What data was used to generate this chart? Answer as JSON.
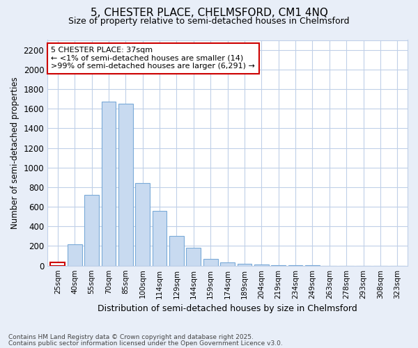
{
  "title1": "5, CHESTER PLACE, CHELMSFORD, CM1 4NQ",
  "title2": "Size of property relative to semi-detached houses in Chelmsford",
  "xlabel": "Distribution of semi-detached houses by size in Chelmsford",
  "ylabel": "Number of semi-detached properties",
  "bar_color": "#c8daf0",
  "bar_edge_color": "#7aaad8",
  "highlight_fill": "#ffffff",
  "highlight_edge": "#cc0000",
  "annotation_title": "5 CHESTER PLACE: 37sqm",
  "annotation_line1": "← <1% of semi-detached houses are smaller (14)",
  "annotation_line2": ">99% of semi-detached houses are larger (6,291) →",
  "categories": [
    "25sqm",
    "40sqm",
    "55sqm",
    "70sqm",
    "85sqm",
    "100sqm",
    "114sqm",
    "129sqm",
    "144sqm",
    "159sqm",
    "174sqm",
    "189sqm",
    "204sqm",
    "219sqm",
    "234sqm",
    "249sqm",
    "263sqm",
    "278sqm",
    "293sqm",
    "308sqm",
    "323sqm"
  ],
  "values": [
    30,
    220,
    720,
    1670,
    1650,
    840,
    560,
    300,
    185,
    70,
    30,
    20,
    10,
    5,
    3,
    2,
    0,
    0,
    0,
    0,
    0
  ],
  "ylim": [
    0,
    2300
  ],
  "yticks": [
    0,
    200,
    400,
    600,
    800,
    1000,
    1200,
    1400,
    1600,
    1800,
    2000,
    2200
  ],
  "footer1": "Contains HM Land Registry data © Crown copyright and database right 2025.",
  "footer2": "Contains public sector information licensed under the Open Government Licence v3.0.",
  "bg_color": "#e8eef8",
  "plot_bg_color": "#ffffff",
  "grid_color": "#c0d0e8"
}
